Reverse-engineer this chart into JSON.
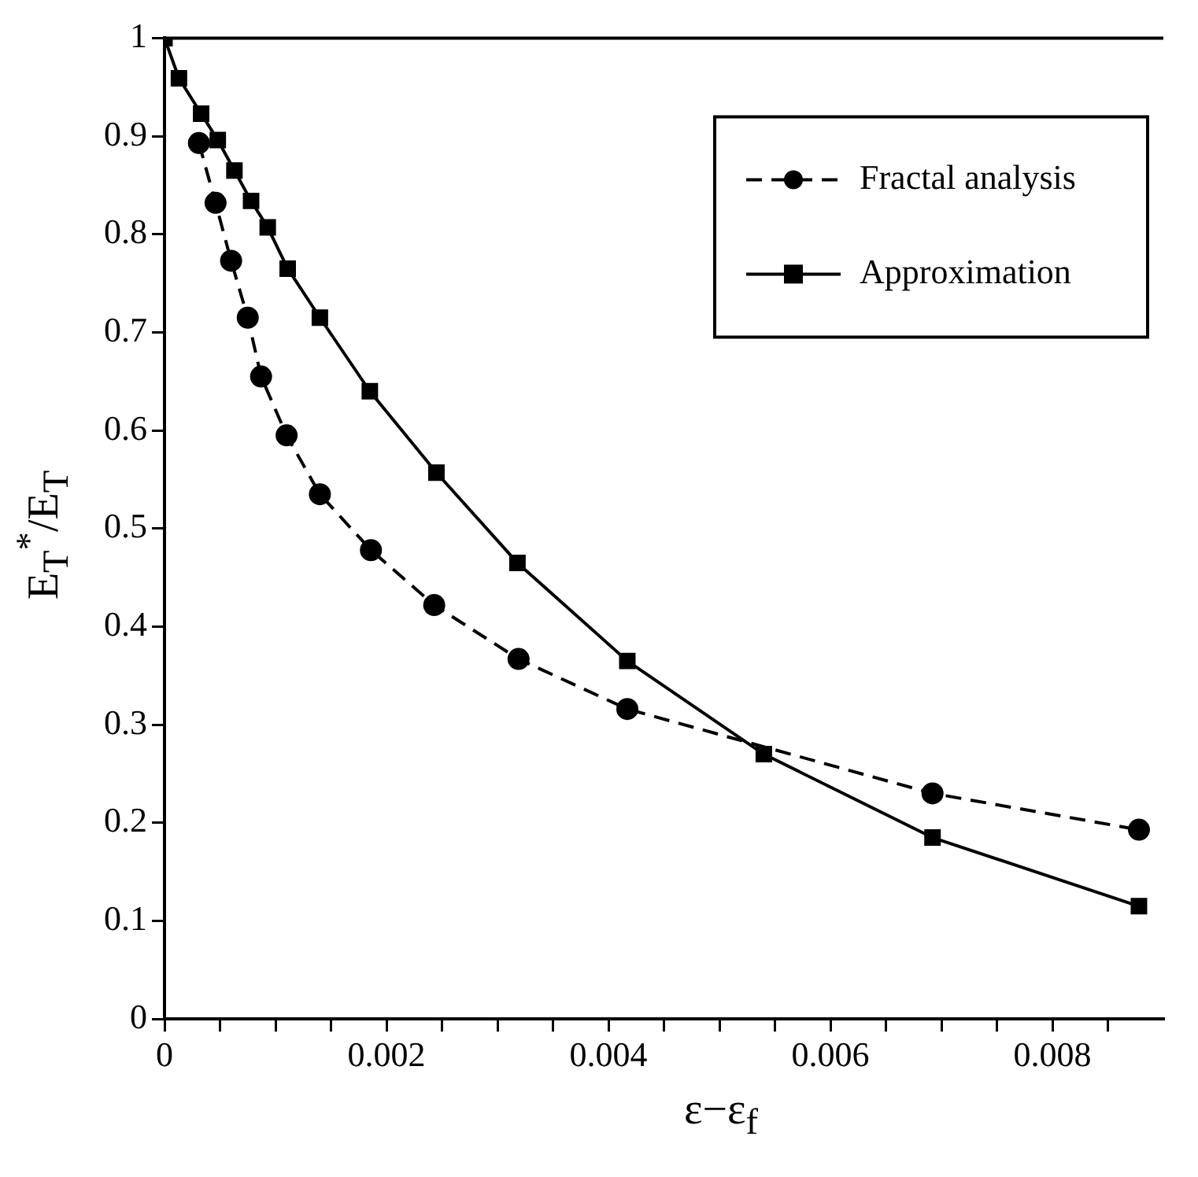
{
  "chart_data": {
    "type": "line",
    "xlabel": "ε−ε$_{f}$",
    "ylabel": "E$_{T}$$^{*}$/E$_{T}$",
    "xlim": [
      0,
      0.009
    ],
    "xticks": [
      0,
      {
        "value": 0.0005,
        "label": null
      },
      {
        "value": 0.001,
        "label": null
      },
      {
        "value": 0.0015,
        "label": null
      },
      "0.002",
      {
        "value": 0.0025,
        "label": null
      },
      {
        "value": 0.003,
        "label": null
      },
      {
        "value": 0.0035,
        "label": null
      },
      0.004,
      {
        "value": 0.0045,
        "label": null
      },
      {
        "value": 0.005,
        "label": null
      },
      {
        "value": 0.0055,
        "label": null
      },
      0.006,
      {
        "value": 0.0065,
        "label": null
      },
      {
        "value": 0.007,
        "label": null
      },
      {
        "value": 0.0075,
        "label": null
      },
      0.008,
      {
        "value": 0.0085,
        "label": null
      }
    ],
    "ylim": [
      0,
      1
    ],
    "yticks": [
      0,
      0.1,
      0.2,
      0.3,
      0.4,
      0.5,
      0.6,
      0.7,
      0.8,
      0.9,
      1
    ],
    "grid": false,
    "legend": "top right",
    "series": [
      {
        "name": "Fractal analysis",
        "color": "#000000",
        "marker": "circle",
        "line_style": "dashed",
        "x": [
          0.00031,
          0.00046,
          0.0006,
          0.00075,
          0.00087,
          0.0011,
          0.0014,
          0.00186,
          0.00243,
          0.00319,
          0.00417,
          0.00692,
          0.00878
        ],
        "values": [
          0.893,
          0.832,
          0.773,
          0.715,
          0.655,
          0.595,
          0.535,
          0.478,
          0.422,
          0.367,
          0.316,
          0.23,
          0.193
        ]
      },
      {
        "name": "Approximation",
        "color": "#000000",
        "marker": "square",
        "line_style": "solid",
        "x": [
          0,
          0.00013,
          0.00033,
          0.00048,
          0.00063,
          0.00078,
          0.00093,
          0.00111,
          0.0014,
          0.00185,
          0.00245,
          0.00318,
          0.00417,
          0.0054,
          0.00692,
          0.00878
        ],
        "values": [
          1,
          0.959,
          0.923,
          0.896,
          0.865,
          0.834,
          0.807,
          0.765,
          0.715,
          0.64,
          0.557,
          0.465,
          0.365,
          0.27,
          0.185,
          0.115
        ]
      }
    ]
  }
}
